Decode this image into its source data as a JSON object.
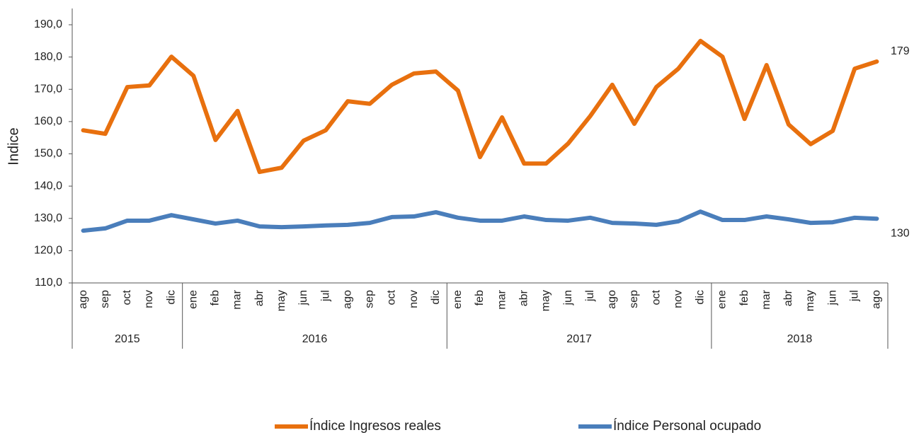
{
  "chart_data": {
    "type": "line",
    "y_label": "Indice",
    "categories": [
      "ago",
      "sep",
      "oct",
      "nov",
      "dic",
      "ene",
      "feb",
      "mar",
      "abr",
      "may",
      "jun",
      "jul",
      "ago",
      "sep",
      "oct",
      "nov",
      "dic",
      "ene",
      "feb",
      "mar",
      "abr",
      "may",
      "jun",
      "jul",
      "ago",
      "sep",
      "oct",
      "nov",
      "dic",
      "ene",
      "feb",
      "mar",
      "abr",
      "may",
      "jun",
      "jul",
      "ago"
    ],
    "groups": [
      {
        "label": "2015",
        "size": 5
      },
      {
        "label": "2016",
        "size": 12
      },
      {
        "label": "2017",
        "size": 12
      },
      {
        "label": "2018",
        "size": 8
      }
    ],
    "series": [
      {
        "name": "Índice Ingresos reales",
        "color": "#e8700e",
        "values": [
          157.3,
          156.2,
          170.7,
          171.2,
          180.1,
          174.2,
          154.3,
          163.3,
          144.4,
          145.7,
          154.1,
          157.3,
          166.3,
          165.5,
          171.4,
          174.9,
          175.5,
          169.6,
          149.0,
          161.3,
          147.0,
          147.0,
          153.2,
          161.7,
          171.4,
          159.3,
          170.7,
          176.4,
          185.0,
          180.1,
          160.8,
          177.5,
          159.1,
          153.0,
          157.1,
          176.4,
          178.6
        ],
        "value_labels": [
          null,
          null,
          null,
          null,
          null,
          null,
          null,
          null,
          null,
          null,
          null,
          null,
          null,
          null,
          null,
          null,
          null,
          null,
          null,
          null,
          null,
          null,
          null,
          null,
          null,
          null,
          null,
          null,
          null,
          null,
          null,
          null,
          null,
          null,
          null,
          null,
          "179"
        ]
      },
      {
        "name": "Índice Personal ocupado",
        "color": "#4a7ebb",
        "values": [
          126.2,
          126.9,
          129.3,
          129.3,
          131.0,
          129.7,
          128.4,
          129.3,
          127.5,
          127.3,
          127.5,
          127.8,
          128.0,
          128.6,
          130.4,
          130.6,
          131.9,
          130.2,
          129.3,
          129.3,
          130.6,
          129.5,
          129.3,
          130.2,
          128.6,
          128.4,
          128.0,
          129.1,
          132.1,
          129.5,
          129.5,
          130.6,
          129.7,
          128.6,
          128.8,
          130.2,
          129.9
        ],
        "value_labels": [
          null,
          null,
          null,
          null,
          null,
          null,
          null,
          null,
          null,
          null,
          null,
          null,
          null,
          null,
          null,
          null,
          null,
          null,
          null,
          null,
          null,
          null,
          null,
          null,
          null,
          null,
          null,
          null,
          null,
          null,
          null,
          null,
          null,
          null,
          null,
          null,
          "130"
        ]
      }
    ],
    "ylim": [
      110,
      190
    ],
    "yticks": [
      {
        "value": 110,
        "label": "110,0"
      },
      {
        "value": 120,
        "label": "120,0"
      },
      {
        "value": 130,
        "label": "130,0"
      },
      {
        "value": 140,
        "label": "140,0"
      },
      {
        "value": 150,
        "label": "150,0"
      },
      {
        "value": 160,
        "label": "160,0"
      },
      {
        "value": 170,
        "label": "170,0"
      },
      {
        "value": 180,
        "label": "180,0"
      },
      {
        "value": 190,
        "label": "190,0"
      }
    ],
    "grid": false,
    "legend": "bottom"
  }
}
